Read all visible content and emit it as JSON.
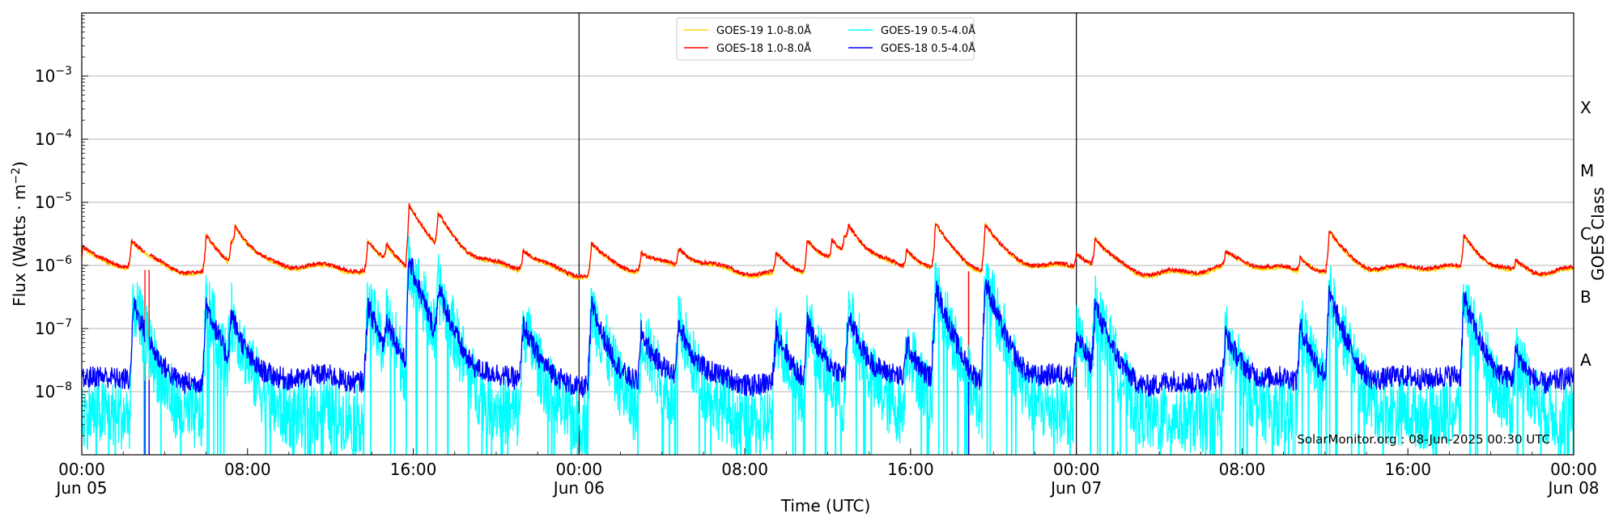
{
  "chart_data": {
    "type": "line",
    "xlabel": "Time (UTC)",
    "ylabel": "Flux (Watts · m",
    "ylabel_sup": "−2",
    "ylabel_close": ")",
    "right_label": "GOES Class",
    "x_range_hours": [
      0,
      72
    ],
    "y_log_range": [
      -9,
      -2
    ],
    "x_ticks": [
      {
        "h": 0,
        "line1": "00:00",
        "line2": "Jun 05"
      },
      {
        "h": 8,
        "line1": "08:00",
        "line2": ""
      },
      {
        "h": 16,
        "line1": "16:00",
        "line2": ""
      },
      {
        "h": 24,
        "line1": "00:00",
        "line2": "Jun 06"
      },
      {
        "h": 32,
        "line1": "08:00",
        "line2": ""
      },
      {
        "h": 40,
        "line1": "16:00",
        "line2": ""
      },
      {
        "h": 48,
        "line1": "00:00",
        "line2": "Jun 07"
      },
      {
        "h": 56,
        "line1": "08:00",
        "line2": ""
      },
      {
        "h": 64,
        "line1": "16:00",
        "line2": ""
      },
      {
        "h": 72,
        "line1": "00:00",
        "line2": "Jun 08"
      }
    ],
    "y_ticks": [
      {
        "exp": -8,
        "base": "10",
        "sup": "−8"
      },
      {
        "exp": -7,
        "base": "10",
        "sup": "−7"
      },
      {
        "exp": -6,
        "base": "10",
        "sup": "−6"
      },
      {
        "exp": -5,
        "base": "10",
        "sup": "−5"
      },
      {
        "exp": -4,
        "base": "10",
        "sup": "−4"
      },
      {
        "exp": -3,
        "base": "10",
        "sup": "−3"
      }
    ],
    "goes_classes": [
      {
        "label": "A",
        "exp": -7.5
      },
      {
        "label": "B",
        "exp": -6.5
      },
      {
        "label": "C",
        "exp": -5.5
      },
      {
        "label": "M",
        "exp": -4.5
      },
      {
        "label": "X",
        "exp": -3.5
      }
    ],
    "day_lines_hours": [
      24,
      48
    ],
    "grid": "horizontal",
    "legend_position": "top-center",
    "credit": "SolarMonitor.org : 08-Jun-2025 00:30 UTC",
    "series": [
      {
        "name": "GOES-19 1.0-8.0Å",
        "color": "#ffd700",
        "baseline": 8e-07,
        "peaks": [
          [
            0.05,
            1.9e-06
          ],
          [
            2.4,
            2.3e-06
          ],
          [
            6.0,
            3e-06
          ],
          [
            7.2,
            2.2e-06
          ],
          [
            7.4,
            3e-06
          ],
          [
            13.8,
            2.4e-06
          ],
          [
            14.7,
            1.7e-06
          ],
          [
            15.8,
            9e-06
          ],
          [
            17.2,
            5.8e-06
          ],
          [
            21.3,
            1.7e-06
          ],
          [
            24.6,
            2.4e-06
          ],
          [
            27.0,
            1.6e-06
          ],
          [
            28.8,
            1.7e-06
          ],
          [
            33.5,
            1.6e-06
          ],
          [
            35.0,
            2.6e-06
          ],
          [
            36.2,
            2.1e-06
          ],
          [
            36.8,
            2.2e-06
          ],
          [
            37.0,
            2.7e-06
          ],
          [
            39.8,
            1.7e-06
          ],
          [
            41.2,
            4.5e-06
          ],
          [
            43.6,
            4.5e-06
          ],
          [
            48.0,
            1.5e-06
          ],
          [
            48.9,
            2.5e-06
          ],
          [
            55.2,
            1.5e-06
          ],
          [
            58.8,
            1.4e-06
          ],
          [
            60.2,
            3.5e-06
          ],
          [
            66.7,
            2.9e-06
          ],
          [
            69.2,
            1.2e-06
          ]
        ]
      },
      {
        "name": "GOES-18 1.0-8.0Å",
        "color": "#ff0000",
        "baseline": 8.5e-07,
        "peaks": [
          [
            0.05,
            2e-06
          ],
          [
            2.4,
            2.4e-06
          ],
          [
            6.0,
            3e-06
          ],
          [
            7.2,
            2.2e-06
          ],
          [
            7.4,
            3.1e-06
          ],
          [
            13.8,
            2.4e-06
          ],
          [
            14.7,
            1.8e-06
          ],
          [
            15.8,
            9e-06
          ],
          [
            17.2,
            5.8e-06
          ],
          [
            21.3,
            1.7e-06
          ],
          [
            24.6,
            2.4e-06
          ],
          [
            27.0,
            1.6e-06
          ],
          [
            28.8,
            1.7e-06
          ],
          [
            33.5,
            1.6e-06
          ],
          [
            35.0,
            2.6e-06
          ],
          [
            36.2,
            2.1e-06
          ],
          [
            36.8,
            2.2e-06
          ],
          [
            37.0,
            2.8e-06
          ],
          [
            39.8,
            1.7e-06
          ],
          [
            41.2,
            4.6e-06
          ],
          [
            43.6,
            4.5e-06
          ],
          [
            48.0,
            1.5e-06
          ],
          [
            48.9,
            2.5e-06
          ],
          [
            55.2,
            1.5e-06
          ],
          [
            58.8,
            1.4e-06
          ],
          [
            60.2,
            3.6e-06
          ],
          [
            66.7,
            2.9e-06
          ],
          [
            69.2,
            1.2e-06
          ]
        ],
        "gaps": [
          [
            3.05,
            3.25
          ]
        ],
        "drop_at": [
          42.8
        ]
      },
      {
        "name": "GOES-19 0.5-4.0Å",
        "color": "#00ffff",
        "baseline": 4e-09,
        "peaks": [
          [
            2.5,
            2.5e-07
          ],
          [
            6.0,
            2.5e-07
          ],
          [
            7.2,
            1.6e-07
          ],
          [
            13.8,
            2.4e-07
          ],
          [
            14.7,
            1.2e-07
          ],
          [
            15.8,
            1.2e-06
          ],
          [
            17.2,
            4e-07
          ],
          [
            21.3,
            1.2e-07
          ],
          [
            24.6,
            2.2e-07
          ],
          [
            27.0,
            9e-08
          ],
          [
            28.8,
            1.2e-07
          ],
          [
            33.5,
            1e-07
          ],
          [
            35.0,
            1.3e-07
          ],
          [
            37.0,
            1.6e-07
          ],
          [
            39.8,
            6e-08
          ],
          [
            41.2,
            4.5e-07
          ],
          [
            43.6,
            5.5e-07
          ],
          [
            48.0,
            8e-08
          ],
          [
            48.9,
            2.3e-07
          ],
          [
            55.2,
            8e-08
          ],
          [
            58.8,
            1.1e-07
          ],
          [
            60.2,
            3.5e-07
          ],
          [
            66.7,
            3e-07
          ],
          [
            69.2,
            4.5e-08
          ]
        ]
      },
      {
        "name": "GOES-18 0.5-4.0Å",
        "color": "#0000ff",
        "baseline": 1.5e-08,
        "peaks": [
          [
            2.5,
            2.5e-07
          ],
          [
            6.0,
            2.5e-07
          ],
          [
            7.2,
            1.6e-07
          ],
          [
            13.8,
            2.4e-07
          ],
          [
            14.7,
            1.2e-07
          ],
          [
            15.8,
            1.2e-06
          ],
          [
            17.2,
            4e-07
          ],
          [
            21.3,
            1.2e-07
          ],
          [
            24.6,
            2.3e-07
          ],
          [
            27.0,
            9e-08
          ],
          [
            28.8,
            1.2e-07
          ],
          [
            33.5,
            1e-07
          ],
          [
            35.0,
            1.3e-07
          ],
          [
            37.0,
            1.6e-07
          ],
          [
            39.8,
            6e-08
          ],
          [
            41.2,
            4.5e-07
          ],
          [
            43.6,
            5.5e-07
          ],
          [
            48.0,
            8e-08
          ],
          [
            48.9,
            2.3e-07
          ],
          [
            55.2,
            8e-08
          ],
          [
            58.8,
            1.1e-07
          ],
          [
            60.2,
            3.5e-07
          ],
          [
            66.7,
            3e-07
          ],
          [
            69.2,
            4.5e-08
          ]
        ],
        "gaps": [
          [
            3.05,
            3.25
          ]
        ],
        "drop_at": [
          42.8
        ]
      }
    ]
  }
}
